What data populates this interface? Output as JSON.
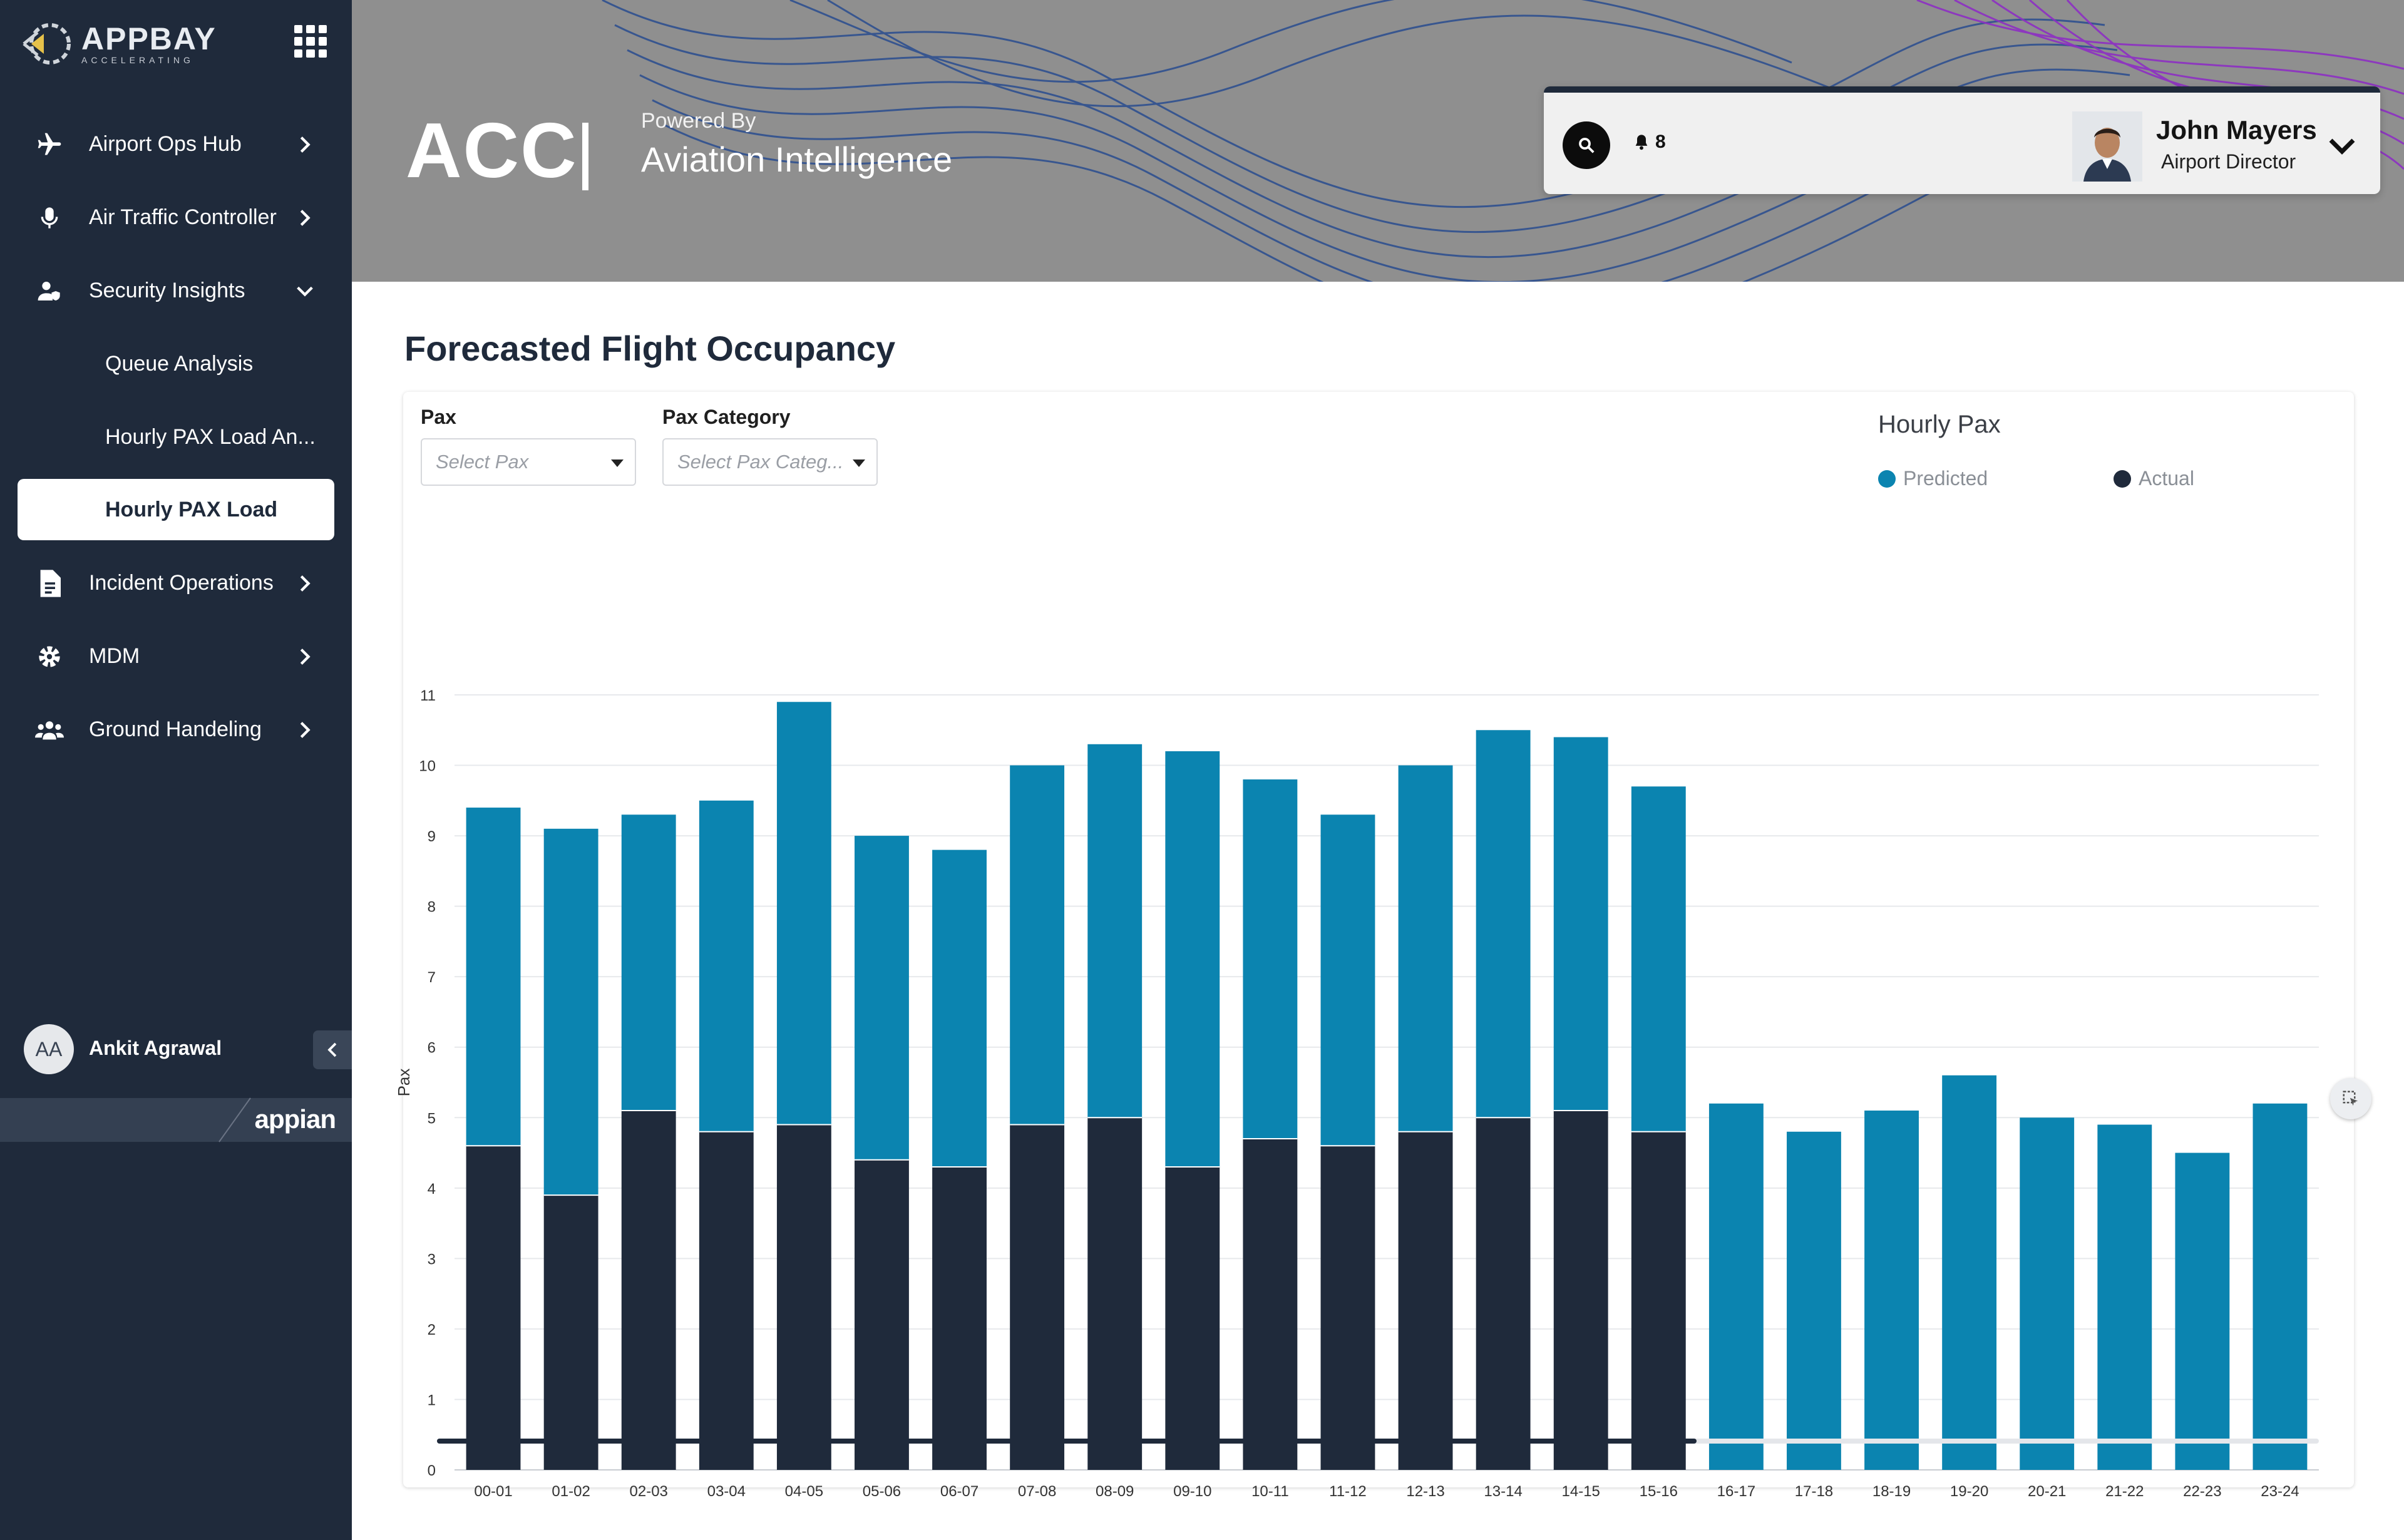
{
  "brand": {
    "name": "APPBAY",
    "tagline": "ACCELERATING"
  },
  "sidebar": {
    "items": [
      {
        "label": "Airport Ops Hub",
        "icon": "plane-icon"
      },
      {
        "label": "Air Traffic Controller",
        "icon": "microphone-icon"
      },
      {
        "label": "Security Insights",
        "icon": "user-shield-icon"
      },
      {
        "label": "Queue Analysis"
      },
      {
        "label": "Hourly PAX Load An..."
      },
      {
        "label": "Hourly PAX Load"
      },
      {
        "label": "Incident Operations",
        "icon": "document-icon"
      },
      {
        "label": "MDM",
        "icon": "gear-icon"
      },
      {
        "label": "Ground Handeling",
        "icon": "users-icon"
      }
    ],
    "user": {
      "initials": "AA",
      "name": "Ankit Agrawal"
    },
    "footer_logo": "appian"
  },
  "header": {
    "title": "ACC",
    "powered_by": "Powered By",
    "subtitle": "Aviation Intelligence",
    "notifications": "8",
    "user": {
      "name": "John Mayers",
      "role": "Airport Director"
    }
  },
  "main": {
    "title": "Forecasted Flight Occupancy",
    "filters": {
      "pax": {
        "label": "Pax",
        "placeholder": "Select Pax"
      },
      "pax_category": {
        "label": "Pax Category",
        "placeholder": "Select Pax Categ..."
      }
    }
  },
  "colors": {
    "predicted": "#0b84b0",
    "actual": "#1f2a3b"
  },
  "chart_data": {
    "type": "bar",
    "stacked": true,
    "title": "Hourly Pax",
    "xlabel": "",
    "ylabel": "Pax",
    "ylim": [
      0,
      11
    ],
    "yticks": [
      "0",
      "1",
      "2",
      "3",
      "4",
      "5",
      "6",
      "7",
      "8",
      "9",
      "10",
      "11"
    ],
    "legend_position": "top-right",
    "grid": true,
    "categories": [
      "00-01",
      "01-02",
      "02-03",
      "03-04",
      "04-05",
      "05-06",
      "06-07",
      "07-08",
      "08-09",
      "09-10",
      "10-11",
      "11-12",
      "12-13",
      "13-14",
      "14-15",
      "15-16",
      "16-17",
      "17-18",
      "18-19",
      "19-20",
      "20-21",
      "21-22",
      "22-23",
      "23-24"
    ],
    "series": [
      {
        "name": "Actual",
        "values": [
          4.6,
          3.9,
          5.1,
          4.8,
          4.9,
          4.4,
          4.3,
          4.9,
          5.0,
          4.3,
          4.7,
          4.6,
          4.8,
          5.0,
          5.1,
          4.8,
          0,
          0,
          0,
          0,
          0,
          0,
          0,
          0
        ]
      },
      {
        "name": "Predicted",
        "values": [
          4.8,
          5.2,
          4.2,
          4.7,
          6.0,
          4.6,
          4.5,
          5.1,
          5.3,
          5.9,
          5.1,
          4.7,
          5.2,
          5.5,
          5.3,
          4.9,
          5.2,
          4.8,
          5.1,
          5.6,
          5.0,
          4.9,
          4.5,
          5.2
        ]
      }
    ]
  }
}
